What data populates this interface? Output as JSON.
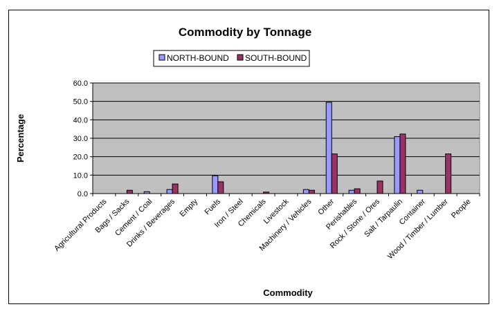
{
  "chart_data": {
    "type": "bar",
    "title": "Commodity by Tonnage",
    "xlabel": "Commodity",
    "ylabel": "Percentage",
    "ylim": [
      0,
      60
    ],
    "yticks": [
      "0.0",
      "10.0",
      "20.0",
      "30.0",
      "40.0",
      "50.0",
      "60.0"
    ],
    "grid": true,
    "legend_position": "top",
    "categories": [
      "Agricultural Products",
      "Bags / Sacks",
      "Cement / Coal",
      "Drinks / Beverages",
      "Empty",
      "Fuels",
      "Iron / Steel",
      "Chemicals",
      "Livestock",
      "Machinery / Vehicles",
      "Other",
      "Perishables",
      "Rock / Stone / Ores",
      "Salt / Tarpaulin",
      "Container",
      "Wood / Timber / Lumber",
      "People"
    ],
    "series": [
      {
        "name": "NORTH-BOUND",
        "color": "#9999ff",
        "values": [
          0,
          0,
          1.0,
          2.2,
          0,
          9.7,
          0,
          0,
          0,
          2.2,
          49.5,
          1.8,
          0,
          30.9,
          1.8,
          0,
          0
        ]
      },
      {
        "name": "SOUTH-BOUND",
        "color": "#993366",
        "values": [
          0,
          1.8,
          0,
          5.2,
          0,
          6.4,
          0,
          0.8,
          0,
          1.8,
          21.5,
          2.6,
          6.8,
          32.3,
          0,
          21.5,
          0
        ]
      }
    ],
    "plot_background": "#c0c0c0"
  }
}
